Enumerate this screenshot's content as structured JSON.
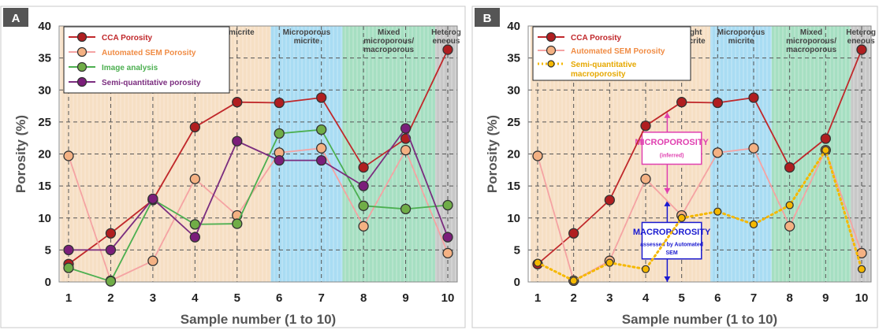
{
  "chart_data": [
    {
      "panel_label": "A",
      "type": "line",
      "x": [
        1,
        2,
        3,
        4,
        5,
        6,
        7,
        8,
        9,
        10
      ],
      "xlabel": "Sample number (1 to 10)",
      "ylabel": "Porosity (%)",
      "xlim": [
        1,
        10
      ],
      "ylim": [
        0,
        40
      ],
      "yticks": [
        "0",
        "5",
        "10",
        "15",
        "20",
        "25",
        "30",
        "35",
        "40"
      ],
      "xticks": [
        "1",
        "2",
        "3",
        "4",
        "5",
        "6",
        "7",
        "8",
        "9",
        "10"
      ],
      "grid": true,
      "legend_position": "top-left",
      "regions": [
        {
          "label": "Tight micrite",
          "x_start": 0.8,
          "x_end": 5.8,
          "color": "#f6dfc4"
        },
        {
          "label": "Microporous micrite",
          "x_start": 5.8,
          "x_end": 7.5,
          "color": "#a9dcf3"
        },
        {
          "label": "Mixed microporous/ macroporous",
          "x_start": 7.5,
          "x_end": 9.7,
          "color": "#a6dfc2"
        },
        {
          "label": "Heterog eneous",
          "x_start": 9.7,
          "x_end": 10.3,
          "color": "#c8c8c8"
        }
      ],
      "series": [
        {
          "name": "CCA Porosity",
          "color": "#c0282b",
          "marker_fill": "#b01e20",
          "values": [
            2.8,
            7.6,
            12.8,
            24.2,
            28.1,
            28.0,
            28.8,
            17.9,
            22.4,
            36.3
          ]
        },
        {
          "name": "Automated SEM Porosity",
          "color": "#f5a3a3",
          "marker_fill": "#f4b183",
          "values": [
            19.7,
            0.2,
            3.3,
            16.1,
            10.4,
            20.2,
            20.9,
            8.7,
            20.6,
            4.5
          ]
        },
        {
          "name": "Image analysis",
          "color": "#4caf50",
          "marker_fill": "#70ad47",
          "values": [
            2.2,
            0.1,
            12.9,
            9.0,
            9.1,
            23.2,
            23.8,
            11.9,
            11.4,
            12.0
          ]
        },
        {
          "name": "Semi-quantitative porosity",
          "color": "#7b2d7f",
          "marker_fill": "#7b1e7a",
          "values": [
            5.0,
            5.0,
            13.0,
            7.0,
            22.0,
            19.0,
            19.0,
            15.0,
            24.0,
            7.0
          ]
        }
      ]
    },
    {
      "panel_label": "B",
      "type": "line",
      "x": [
        1,
        2,
        3,
        4,
        5,
        6,
        7,
        8,
        9,
        10
      ],
      "xlabel": "Sample number (1 to 10)",
      "ylabel": "Porosity (%)",
      "xlim": [
        1,
        10
      ],
      "ylim": [
        0,
        40
      ],
      "yticks": [
        "0",
        "5",
        "10",
        "15",
        "20",
        "25",
        "30",
        "35",
        "40"
      ],
      "xticks": [
        "1",
        "2",
        "3",
        "4",
        "5",
        "6",
        "7",
        "8",
        "9",
        "10"
      ],
      "grid": true,
      "legend_position": "top-left",
      "regions": [
        {
          "label": "Tight micrite",
          "x_start": 0.8,
          "x_end": 5.8,
          "color": "#f6dfc4"
        },
        {
          "label": "Microporous micrite",
          "x_start": 5.8,
          "x_end": 7.5,
          "color": "#a9dcf3"
        },
        {
          "label": "Mixed microporous/ macroporous",
          "x_start": 7.5,
          "x_end": 9.7,
          "color": "#a6dfc2"
        },
        {
          "label": "Heterog eneous",
          "x_start": 9.7,
          "x_end": 10.3,
          "color": "#c8c8c8"
        }
      ],
      "series": [
        {
          "name": "CCA Porosity",
          "color": "#c0282b",
          "marker_fill": "#b01e20",
          "values": [
            2.8,
            7.6,
            12.8,
            24.4,
            28.1,
            28.0,
            28.8,
            17.9,
            22.4,
            36.3
          ]
        },
        {
          "name": "Automated SEM Porosity",
          "color": "#f5a3a3",
          "marker_fill": "#f4b183",
          "values": [
            19.7,
            0.2,
            3.3,
            16.1,
            10.4,
            20.2,
            20.9,
            8.7,
            20.6,
            4.5
          ]
        },
        {
          "name": "Semi-quantitative macroporosity",
          "color": "#f5b800",
          "marker_fill": "#f5b800",
          "dashed": true,
          "values": [
            3.0,
            0.2,
            3.0,
            2.0,
            10.0,
            11.0,
            9.0,
            12.0,
            20.6,
            2.0
          ]
        }
      ],
      "annotations": [
        {
          "title": "MICROPOROSITY",
          "subtitle": "(inferred)",
          "color": "#e040b0"
        },
        {
          "title": "MACROPOROSITY",
          "subtitle": "assessed by Automated SEM",
          "color": "#1a1ad0"
        }
      ]
    }
  ]
}
